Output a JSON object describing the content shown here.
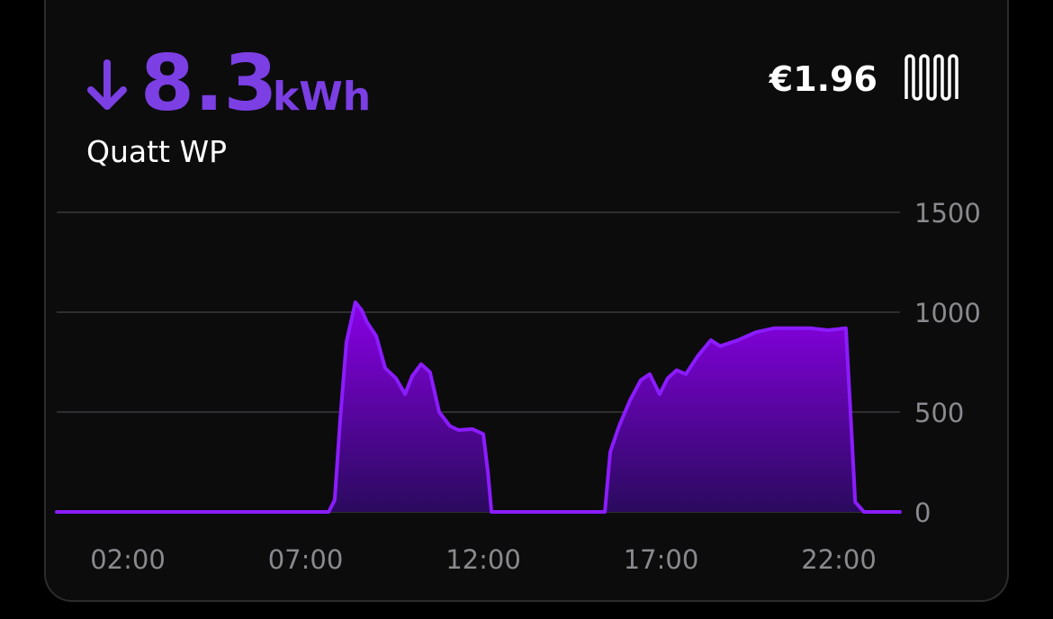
{
  "header": {
    "value": "8.3",
    "unit": "kWh",
    "device": "Quatt WP",
    "cost": "€1.96"
  },
  "chart_data": {
    "type": "area",
    "x": [
      0,
      7.65,
      7.82,
      7.97,
      8.15,
      8.4,
      8.58,
      8.73,
      8.99,
      9.24,
      9.54,
      9.8,
      10.0,
      10.25,
      10.5,
      10.76,
      11.06,
      11.3,
      11.7,
      12.0,
      12.13,
      12.23,
      15.42,
      15.57,
      15.82,
      16.13,
      16.43,
      16.68,
      16.96,
      17.19,
      17.44,
      17.7,
      18.03,
      18.4,
      18.66,
      19.16,
      19.67,
      20.18,
      21.19,
      21.7,
      22.2,
      22.33,
      22.46,
      22.71,
      23.72
    ],
    "series": [
      {
        "color": "#8b1cff",
        "values": [
          0,
          0,
          60,
          450,
          850,
          1050,
          1010,
          950,
          880,
          720,
          670,
          590,
          680,
          740,
          700,
          500,
          430,
          410,
          415,
          390,
          200,
          0,
          0,
          300,
          430,
          560,
          660,
          690,
          590,
          670,
          710,
          690,
          780,
          860,
          830,
          860,
          900,
          920,
          920,
          910,
          920,
          500,
          50,
          0,
          0
        ]
      }
    ],
    "xlim": [
      0,
      24
    ],
    "ylim": [
      0,
      1500
    ],
    "xticks": [
      {
        "value": 2,
        "label": "02:00"
      },
      {
        "value": 7,
        "label": "07:00"
      },
      {
        "value": 12,
        "label": "12:00"
      },
      {
        "value": 17,
        "label": "17:00"
      },
      {
        "value": 22,
        "label": "22:00"
      }
    ],
    "yticks": [
      0,
      500,
      1000,
      1500
    ],
    "grid": true
  }
}
